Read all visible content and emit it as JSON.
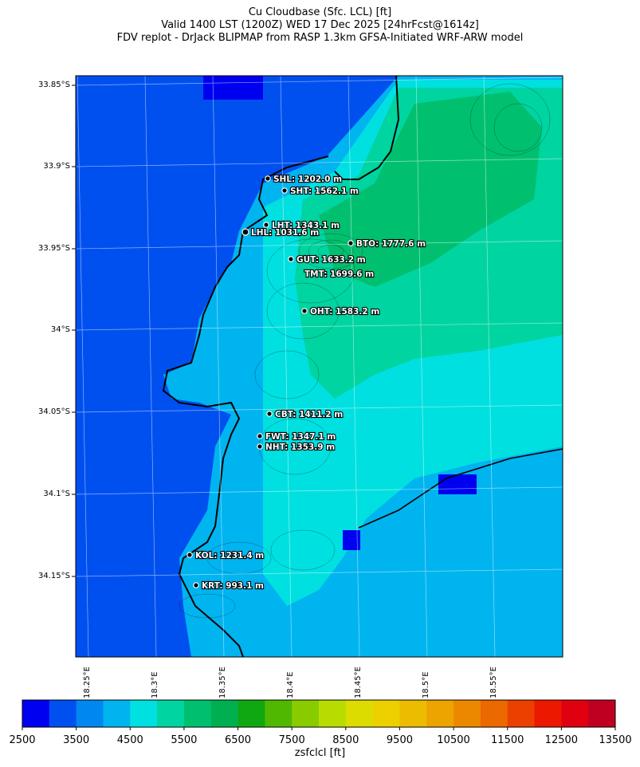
{
  "header": {
    "line1": "Cu Cloudbase (Sfc. LCL) [ft]",
    "line2": "Valid 1400 LST (1200Z) WED 17 Dec 2025 [24hrFcst@1614z]",
    "line3": "FDV replot - DrJack BLIPMAP from RASP 1.3km GFSA-Initiated WRF-ARW model"
  },
  "axes": {
    "lat_labels": [
      "33.85°S",
      "33.9°S",
      "33.95°S",
      "34°S",
      "34.05°S",
      "34.1°S",
      "34.15°S"
    ],
    "lon_labels": [
      "18.25°E",
      "18.3°E",
      "18.35°E",
      "18.4°E",
      "18.45°E",
      "18.5°E",
      "18.55°E"
    ]
  },
  "stations": [
    {
      "code": "SHL",
      "value": "1202.0 m"
    },
    {
      "code": "SHT",
      "value": "1562.1 m"
    },
    {
      "code": "LHT",
      "value": "1343.1 m"
    },
    {
      "code": "LHL",
      "value": "1031.6 m"
    },
    {
      "code": "BTO",
      "value": "1777.6 m"
    },
    {
      "code": "GUT",
      "value": "1633.2 m"
    },
    {
      "code": "TMT",
      "value": "1699.6 m"
    },
    {
      "code": "OHT",
      "value": "1583.2 m"
    },
    {
      "code": "CBT",
      "value": "1411.2 m"
    },
    {
      "code": "FWT",
      "value": "1347.1 m"
    },
    {
      "code": "NHT",
      "value": "1353.9 m"
    },
    {
      "code": "KOL",
      "value": "1231.4 m"
    },
    {
      "code": "KRT",
      "value": "993.1 m"
    }
  ],
  "colorbar": {
    "label": "zsfclcl [ft]",
    "ticks": [
      "2500",
      "3500",
      "4500",
      "5500",
      "6500",
      "7500",
      "8500",
      "9500",
      "10500",
      "11500",
      "12500",
      "13500"
    ],
    "colors": [
      "#0000f0",
      "#0050f0",
      "#0088f0",
      "#00b4f0",
      "#00e0e0",
      "#00d4a0",
      "#00c070",
      "#00b050",
      "#10a810",
      "#50b800",
      "#88cc00",
      "#b8dc00",
      "#dcdc00",
      "#ecd000",
      "#ecbc00",
      "#eca400",
      "#ec8800",
      "#ec6800",
      "#ec4000",
      "#ec1800",
      "#e00010",
      "#c00020"
    ]
  }
}
